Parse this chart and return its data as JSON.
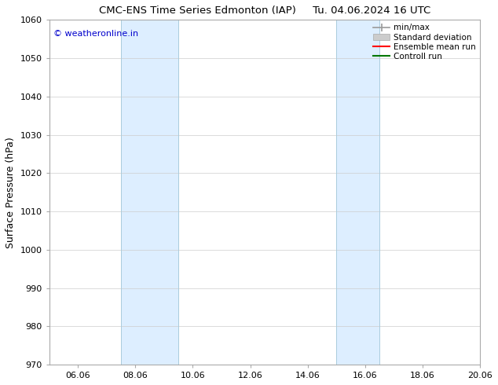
{
  "title": "CMC-ENS Time Series Edmonton (IAP)     Tu. 04.06.2024 16 UTC",
  "ylabel": "Surface Pressure (hPa)",
  "ylim": [
    970,
    1060
  ],
  "yticks": [
    970,
    980,
    990,
    1000,
    1010,
    1020,
    1030,
    1040,
    1050,
    1060
  ],
  "xlim": [
    0,
    15
  ],
  "xtick_positions": [
    1,
    3,
    5,
    7,
    9,
    11,
    13,
    15
  ],
  "xtick_labels": [
    "06.06",
    "08.06",
    "10.06",
    "12.06",
    "14.06",
    "16.06",
    "18.06",
    "20.06"
  ],
  "blue_bands": [
    {
      "start": 2.5,
      "end": 4.5
    },
    {
      "start": 10.0,
      "end": 11.5
    }
  ],
  "watermark": "© weatheronline.in",
  "watermark_color": "#0000cc",
  "legend_labels": [
    "min/max",
    "Standard deviation",
    "Ensemble mean run",
    "Controll run"
  ],
  "legend_line_colors": [
    "#999999",
    "#cccccc",
    "#ff0000",
    "#007700"
  ],
  "background_color": "#ffffff",
  "grid_color": "#cccccc",
  "band_color": "#ddeeff",
  "band_edge_color": "#aaccdd",
  "spine_color": "#aaaaaa"
}
